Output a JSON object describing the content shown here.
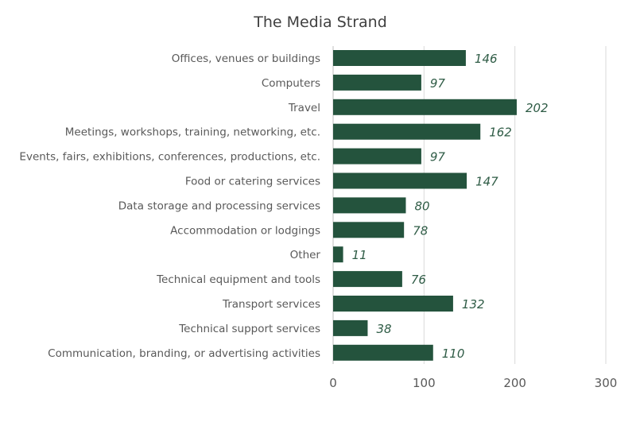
{
  "chart_data": {
    "type": "bar",
    "orientation": "horizontal",
    "title": "The Media Strand",
    "categories": [
      "Offices, venues or buildings",
      "Computers",
      "Travel",
      "Meetings, workshops, training, networking, etc.",
      "Events, fairs, exhibitions, conferences, productions, etc.",
      "Food or catering services",
      "Data storage and processing services",
      "Accommodation or lodgings",
      "Other",
      "Technical equipment and tools",
      "Transport services",
      "Technical support services",
      "Communication, branding, or advertising activities"
    ],
    "values": [
      146,
      97,
      202,
      162,
      97,
      147,
      80,
      78,
      11,
      76,
      132,
      38,
      110
    ],
    "xlim": [
      0,
      300
    ],
    "xticks": [
      0,
      100,
      200,
      300
    ],
    "xlabel": "",
    "ylabel": "",
    "grid": true,
    "data_labels": true,
    "bar_color": "#24533d",
    "label_color": "#2f5c46"
  }
}
